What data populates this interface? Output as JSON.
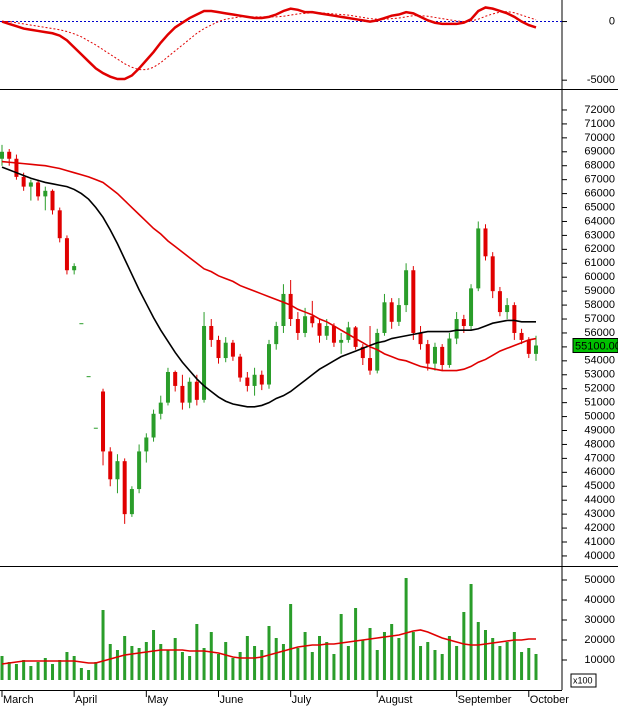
{
  "chart_data": [
    {
      "type": "line",
      "ylim": [
        -5667,
        1667
      ],
      "yticks": [
        0,
        -5000
      ],
      "zero_line_color": "#0000cc",
      "series": [
        {
          "color": "#e00000",
          "values": [
            0,
            -200,
            -400,
            -600,
            -700,
            -800,
            -900,
            -1000,
            -1200,
            -1600,
            -2200,
            -2800,
            -3400,
            -4000,
            -4400,
            -4700,
            -4900,
            -4900,
            -4600,
            -4000,
            -3300,
            -2600,
            -1800,
            -1100,
            -500,
            -100,
            300,
            600,
            900,
            900,
            800,
            700,
            600,
            500,
            400,
            300,
            300,
            400,
            600,
            900,
            1100,
            1000,
            800,
            800,
            700,
            600,
            500,
            400,
            300,
            200,
            100,
            0,
            100,
            300,
            500,
            600,
            800,
            700,
            400,
            100,
            -100,
            -200,
            -200,
            -200,
            -100,
            200,
            900,
            1200,
            1100,
            900,
            700,
            400,
            0,
            -300,
            -500
          ]
        },
        {
          "color": "#e00000",
          "style": "dotted",
          "values": [
            0,
            0,
            -100,
            -200,
            -300,
            -400,
            -500,
            -600,
            -700,
            -850,
            -1050,
            -1300,
            -1650,
            -2000,
            -2400,
            -2800,
            -3200,
            -3600,
            -3900,
            -4100,
            -4100,
            -3900,
            -3500,
            -3000,
            -2500,
            -2000,
            -1500,
            -1000,
            -600,
            -300,
            0,
            200,
            300,
            400,
            400,
            400,
            400,
            400,
            400,
            450,
            550,
            650,
            700,
            750,
            750,
            700,
            650,
            600,
            550,
            450,
            350,
            250,
            200,
            200,
            250,
            300,
            400,
            500,
            500,
            450,
            350,
            250,
            150,
            50,
            0,
            50,
            200,
            450,
            650,
            800,
            850,
            750,
            550,
            350,
            150
          ]
        }
      ]
    },
    {
      "type": "candlestick",
      "ylim": [
        39350,
        73290
      ],
      "yticks": [
        40000,
        41000,
        42000,
        43000,
        44000,
        45000,
        46000,
        47000,
        48000,
        49000,
        50000,
        51000,
        52000,
        53000,
        54000,
        55000,
        56000,
        57000,
        58000,
        59000,
        60000,
        61000,
        62000,
        63000,
        64000,
        65000,
        66000,
        67000,
        68000,
        69000,
        70000,
        71000,
        72000
      ],
      "up_color": "#2a9d2a",
      "down_color": "#e00000",
      "open": [
        68500,
        69000,
        68500,
        67200,
        66500,
        66800,
        65800,
        66200,
        64800,
        62800,
        60500,
        56700,
        52900,
        49200,
        51800,
        47500,
        45500,
        46800,
        43000,
        44800,
        47500,
        48500,
        50200,
        51000,
        53200,
        52200,
        51000,
        52500,
        51200,
        56500,
        55500,
        54200,
        55300,
        54300,
        52800,
        52200,
        53000,
        52300,
        55200,
        56500,
        58800,
        57000,
        56000,
        57200,
        56700,
        55800,
        56500,
        55300,
        55500,
        56400,
        55000,
        54200,
        53300,
        56000,
        58200,
        56800,
        58000,
        60500,
        56000,
        55200,
        53800,
        55000,
        53700,
        55600,
        57000,
        56500,
        59200,
        63500,
        61500,
        59000,
        57500,
        58000,
        56000,
        55500,
        54500
      ],
      "high": [
        69500,
        69200,
        68800,
        67500,
        67000,
        67000,
        66500,
        66300,
        65000,
        63000,
        61000,
        56700,
        52900,
        49200,
        52000,
        47800,
        47300,
        47000,
        45000,
        48000,
        48800,
        50500,
        51500,
        53500,
        53300,
        53000,
        52800,
        53000,
        57500,
        57000,
        55800,
        55700,
        55500,
        54500,
        53200,
        53500,
        53300,
        55500,
        56800,
        59500,
        59800,
        57500,
        57800,
        58300,
        57000,
        57000,
        56700,
        56000,
        56800,
        56500,
        55200,
        56500,
        56300,
        58800,
        58500,
        58500,
        61000,
        60800,
        56500,
        55500,
        55300,
        55200,
        56000,
        57500,
        57300,
        59500,
        64000,
        63800,
        61800,
        59300,
        58500,
        58200,
        56300,
        55700,
        55800
      ],
      "low": [
        68000,
        68000,
        67000,
        66200,
        65500,
        65500,
        64800,
        64500,
        62500,
        60200,
        60200,
        56700,
        52900,
        49200,
        46500,
        45000,
        44500,
        42300,
        42800,
        44500,
        46700,
        48200,
        49800,
        50800,
        51800,
        50500,
        50600,
        50800,
        51000,
        55000,
        53800,
        53900,
        54000,
        52500,
        51800,
        51500,
        51900,
        52000,
        54800,
        56000,
        56500,
        55500,
        55700,
        56400,
        55300,
        55500,
        55000,
        54500,
        55300,
        54800,
        53700,
        53000,
        53100,
        55800,
        56300,
        56500,
        57500,
        55500,
        54800,
        53300,
        53300,
        53300,
        53500,
        55200,
        56000,
        56200,
        59000,
        61200,
        58500,
        57200,
        57000,
        55500,
        55200,
        54200,
        54000
      ],
      "close": [
        69000,
        68500,
        67200,
        66500,
        66800,
        65800,
        66200,
        64800,
        62800,
        60500,
        60800,
        56700,
        52900,
        49200,
        47500,
        45500,
        46800,
        43000,
        44800,
        47500,
        48500,
        50200,
        51000,
        53200,
        52200,
        51000,
        52500,
        51200,
        56500,
        55500,
        54200,
        55300,
        54300,
        52800,
        52200,
        53000,
        52300,
        55200,
        56500,
        58800,
        57000,
        56000,
        57200,
        56700,
        55800,
        56500,
        55300,
        55500,
        56400,
        55000,
        54200,
        53300,
        56000,
        58200,
        56800,
        58000,
        60500,
        56000,
        55200,
        53800,
        55000,
        53700,
        55600,
        57000,
        56500,
        59200,
        63500,
        61500,
        59000,
        57500,
        58000,
        56000,
        55500,
        54500,
        55100
      ],
      "series": [
        {
          "color": "#000000",
          "values": [
            67900,
            67700,
            67500,
            67300,
            67100,
            66950,
            66800,
            66700,
            66600,
            66500,
            66300,
            66000,
            65600,
            65000,
            64300,
            63400,
            62400,
            61300,
            60200,
            59100,
            58100,
            57100,
            56200,
            55400,
            54600,
            53900,
            53300,
            52700,
            52200,
            51800,
            51400,
            51100,
            50900,
            50800,
            50700,
            50700,
            50800,
            51000,
            51300,
            51500,
            51800,
            52200,
            52600,
            53000,
            53400,
            53700,
            54000,
            54300,
            54500,
            54700,
            54900,
            55100,
            55300,
            55400,
            55600,
            55700,
            55800,
            55900,
            56000,
            56100,
            56100,
            56100,
            56100,
            56200,
            56200,
            56200,
            56300,
            56500,
            56700,
            56800,
            56900,
            56900,
            56800,
            56800,
            56800
          ]
        },
        {
          "color": "#e00000",
          "values": [
            68300,
            68250,
            68200,
            68150,
            68100,
            68050,
            68000,
            67900,
            67800,
            67650,
            67500,
            67350,
            67200,
            67000,
            66800,
            66400,
            66000,
            65500,
            65000,
            64500,
            64000,
            63500,
            63100,
            62600,
            62200,
            61800,
            61400,
            61000,
            60600,
            60400,
            60100,
            59900,
            59700,
            59400,
            59200,
            59000,
            58800,
            58600,
            58400,
            58200,
            58000,
            57700,
            57500,
            57300,
            57000,
            56800,
            56500,
            56200,
            55900,
            55600,
            55300,
            55000,
            54800,
            54500,
            54300,
            54100,
            54000,
            53800,
            53600,
            53500,
            53400,
            53300,
            53300,
            53300,
            53400,
            53600,
            53900,
            54100,
            54400,
            54700,
            54900,
            55100,
            55300,
            55500,
            55600
          ]
        }
      ],
      "last_price": {
        "value": 55100,
        "label": "55100.00"
      },
      "last_price_color": "#00c000"
    },
    {
      "type": "bar",
      "ylim": [
        -5000,
        56500
      ],
      "yticks": [
        10000,
        20000,
        30000,
        40000,
        50000
      ],
      "color": "#2a9d2a",
      "values": [
        12000,
        9000,
        8000,
        10000,
        7000,
        9000,
        11000,
        8000,
        10000,
        14000,
        12000,
        6000,
        5000,
        9000,
        35000,
        18000,
        15000,
        22000,
        17000,
        16000,
        19000,
        25000,
        18000,
        15000,
        21000,
        14000,
        12000,
        28000,
        16000,
        24000,
        13000,
        19000,
        11000,
        14000,
        22000,
        17000,
        15000,
        27000,
        21000,
        18000,
        38000,
        16000,
        24000,
        14000,
        22000,
        19000,
        13000,
        33000,
        17000,
        36000,
        20000,
        26000,
        15000,
        24000,
        28000,
        21000,
        51000,
        24000,
        17000,
        19000,
        15000,
        13000,
        22000,
        17000,
        34000,
        48000,
        29000,
        25000,
        21000,
        17000,
        19000,
        24000,
        14000,
        16000,
        13000
      ],
      "series": [
        {
          "color": "#e00000",
          "values": [
            8000,
            8500,
            9000,
            9500,
            9500,
            9500,
            9500,
            9500,
            9500,
            9500,
            9500,
            9000,
            8500,
            8500,
            9500,
            10500,
            11500,
            12500,
            13000,
            13500,
            14000,
            14500,
            15000,
            15000,
            15000,
            15000,
            14500,
            14500,
            14500,
            14000,
            13500,
            12500,
            11500,
            11000,
            11000,
            11000,
            11500,
            12500,
            13500,
            14500,
            15500,
            16500,
            17000,
            17500,
            17500,
            18000,
            18000,
            18500,
            19000,
            19500,
            20000,
            20500,
            21000,
            21500,
            22000,
            22500,
            23500,
            24500,
            25000,
            24000,
            22500,
            21000,
            20000,
            19000,
            18000,
            17500,
            17500,
            18000,
            18500,
            19000,
            19500,
            20000,
            20000,
            20500,
            20500
          ]
        }
      ],
      "categories": [
        "March",
        null,
        null,
        null,
        null,
        null,
        null,
        null,
        null,
        null,
        "April",
        null,
        null,
        null,
        null,
        null,
        null,
        null,
        null,
        null,
        "May",
        null,
        null,
        null,
        null,
        null,
        null,
        null,
        null,
        null,
        "June",
        null,
        null,
        null,
        null,
        null,
        null,
        null,
        null,
        null,
        "July",
        null,
        null,
        null,
        null,
        null,
        null,
        null,
        null,
        null,
        null,
        null,
        "August",
        null,
        null,
        null,
        null,
        null,
        null,
        null,
        null,
        null,
        null,
        "September",
        null,
        null,
        null,
        null,
        null,
        null,
        null,
        null,
        null,
        "October",
        null
      ],
      "unit_label": "x100"
    }
  ]
}
